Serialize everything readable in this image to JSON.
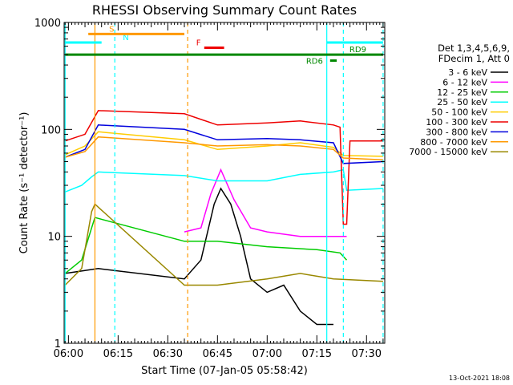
{
  "chart_data": {
    "type": "line",
    "title": "RHESSI Observing Summary Count Rates",
    "xlabel": "Start Time (07-Jan-05 05:58:42)",
    "ylabel": "Count Rate (s⁻¹ detector⁻¹)",
    "y_scale": "log",
    "ylim": [
      1,
      1000
    ],
    "xlim": [
      "05:58:42",
      "07:35:30"
    ],
    "x_ticks": [
      "06:00",
      "06:15",
      "06:30",
      "06:45",
      "07:00",
      "07:15",
      "07:30"
    ],
    "y_ticks": [
      "1",
      "10",
      "100",
      "1000"
    ],
    "timestamp": "13-Oct-2021 18:08",
    "legend": {
      "placement": "right",
      "header": [
        "Det 1,3,4,5,6,9,",
        "FDecim 1, Att 0"
      ]
    },
    "series": [
      {
        "name": "3 - 6 keV",
        "color": "#000000",
        "points": [
          [
            "05:59",
            4.5
          ],
          [
            "06:05",
            4.8
          ],
          [
            "06:09",
            5
          ],
          [
            "06:35",
            4
          ],
          [
            "06:40",
            6
          ],
          [
            "06:44",
            20
          ],
          [
            "06:46",
            28
          ],
          [
            "06:49",
            20
          ],
          [
            "06:52",
            10
          ],
          [
            "06:55",
            4
          ],
          [
            "07:00",
            3
          ],
          [
            "07:05",
            3.5
          ],
          [
            "07:10",
            2
          ],
          [
            "07:15",
            1.5
          ],
          [
            "07:20",
            1.5
          ]
        ]
      },
      {
        "name": "6 - 12 keV",
        "color": "#ff00ff",
        "points": [
          [
            "06:35",
            11
          ],
          [
            "06:40",
            12
          ],
          [
            "06:43",
            25
          ],
          [
            "06:46",
            42
          ],
          [
            "06:50",
            22
          ],
          [
            "06:55",
            12
          ],
          [
            "07:00",
            11
          ],
          [
            "07:10",
            10
          ],
          [
            "07:20",
            10
          ],
          [
            "07:24",
            10
          ]
        ]
      },
      {
        "name": "12 - 25 keV",
        "color": "#00cc00",
        "points": [
          [
            "05:59",
            4.5
          ],
          [
            "06:04",
            6
          ],
          [
            "06:07",
            12
          ],
          [
            "06:08",
            15
          ],
          [
            "06:35",
            9
          ],
          [
            "06:45",
            9
          ],
          [
            "07:00",
            8
          ],
          [
            "07:15",
            7.5
          ],
          [
            "07:22",
            7
          ],
          [
            "07:24",
            6
          ]
        ]
      },
      {
        "name": "25 - 50 keV",
        "color": "#00ffff",
        "points": [
          [
            "05:59",
            26
          ],
          [
            "06:04",
            30
          ],
          [
            "06:07",
            36
          ],
          [
            "06:09",
            40
          ],
          [
            "06:35",
            37
          ],
          [
            "06:45",
            33
          ],
          [
            "07:00",
            33
          ],
          [
            "07:10",
            38
          ],
          [
            "07:20",
            40
          ],
          [
            "07:23",
            42
          ],
          [
            "07:24",
            27
          ],
          [
            "07:35",
            28
          ]
        ]
      },
      {
        "name": "50 - 100 keV",
        "color": "#ffcc00",
        "points": [
          [
            "05:59",
            58
          ],
          [
            "06:05",
            70
          ],
          [
            "06:09",
            95
          ],
          [
            "06:35",
            80
          ],
          [
            "06:45",
            65
          ],
          [
            "07:00",
            70
          ],
          [
            "07:10",
            75
          ],
          [
            "07:20",
            68
          ],
          [
            "07:23",
            57
          ],
          [
            "07:35",
            56
          ]
        ]
      },
      {
        "name": "100 - 300 keV",
        "color": "#ee0000",
        "points": [
          [
            "05:59",
            78
          ],
          [
            "06:05",
            90
          ],
          [
            "06:09",
            150
          ],
          [
            "06:35",
            140
          ],
          [
            "06:45",
            110
          ],
          [
            "07:00",
            115
          ],
          [
            "07:10",
            120
          ],
          [
            "07:20",
            110
          ],
          [
            "07:22",
            105
          ],
          [
            "07:23",
            13
          ],
          [
            "07:24",
            13
          ],
          [
            "07:25",
            78
          ],
          [
            "07:35",
            78
          ]
        ]
      },
      {
        "name": "300 - 800 keV",
        "color": "#0000dd",
        "points": [
          [
            "05:59",
            55
          ],
          [
            "06:05",
            65
          ],
          [
            "06:09",
            110
          ],
          [
            "06:35",
            100
          ],
          [
            "06:45",
            80
          ],
          [
            "07:00",
            82
          ],
          [
            "07:10",
            80
          ],
          [
            "07:20",
            75
          ],
          [
            "07:23",
            48
          ],
          [
            "07:35",
            50
          ]
        ]
      },
      {
        "name": "800 - 7000 keV",
        "color": "#ff9900",
        "points": [
          [
            "05:59",
            55
          ],
          [
            "06:05",
            62
          ],
          [
            "06:09",
            85
          ],
          [
            "06:35",
            75
          ],
          [
            "06:45",
            70
          ],
          [
            "07:00",
            72
          ],
          [
            "07:10",
            70
          ],
          [
            "07:20",
            65
          ],
          [
            "07:23",
            54
          ],
          [
            "07:35",
            52
          ]
        ]
      },
      {
        "name": "7000 - 15000 keV",
        "color": "#998800",
        "points": [
          [
            "05:59",
            3.5
          ],
          [
            "06:04",
            5
          ],
          [
            "06:07",
            17
          ],
          [
            "06:08",
            20
          ],
          [
            "06:35",
            3.5
          ],
          [
            "06:45",
            3.5
          ],
          [
            "07:00",
            4
          ],
          [
            "07:10",
            4.5
          ],
          [
            "07:20",
            4
          ],
          [
            "07:35",
            3.8
          ]
        ]
      }
    ],
    "annotations": {
      "orange_bars": [
        {
          "label": "S",
          "start": "06:06",
          "end": "06:35",
          "value": 780,
          "color": "#ff9900"
        }
      ],
      "cyan_bars": [
        {
          "label": "N",
          "start": "05:59",
          "end": "06:10",
          "value": 650,
          "color": "#00ffff"
        },
        {
          "label": "",
          "start": "07:18",
          "end": "07:35",
          "value": 650,
          "color": "#00ffff"
        }
      ],
      "green_bars": [
        {
          "label": "RD9",
          "start": "05:59",
          "end": "07:35",
          "value": 500,
          "color": "#008800"
        },
        {
          "label": "RD6",
          "start": "07:19",
          "end": "07:21",
          "value": 440,
          "color": "#008800"
        }
      ],
      "red_bars": [
        {
          "label": "F",
          "start": "06:41",
          "end": "06:47",
          "value": 580,
          "color": "#ee0000"
        }
      ],
      "vertical_lines": [
        {
          "time": "05:59",
          "color": "#00ffff",
          "style": "solid"
        },
        {
          "time": "06:08",
          "color": "#ff9900",
          "style": "solid"
        },
        {
          "time": "06:14",
          "color": "#00ffff",
          "style": "dashed"
        },
        {
          "time": "06:36",
          "color": "#ff9900",
          "style": "dashed"
        },
        {
          "time": "07:18",
          "color": "#00ffff",
          "style": "solid"
        },
        {
          "time": "07:23",
          "color": "#00ffff",
          "style": "dashed"
        },
        {
          "time": "07:35",
          "color": "#00ffff",
          "style": "dashed"
        }
      ]
    }
  }
}
